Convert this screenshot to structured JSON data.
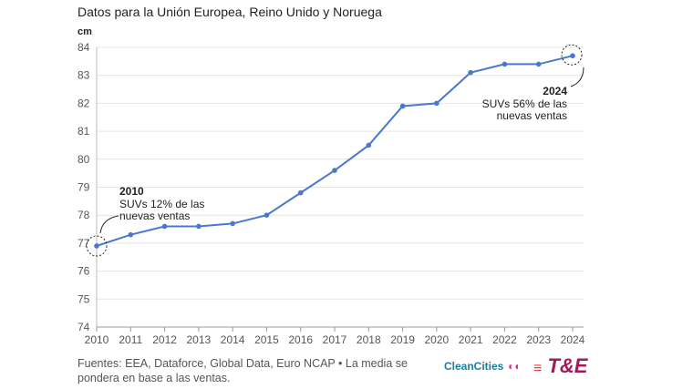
{
  "title": "Datos para la Unión Europea, Reino Unido y Noruega",
  "source": "Fuentes: EEA, Dataforce, Global Data, Euro NCAP • La media se pondera en base a las ventas.",
  "logos": {
    "cleancities": "CleanCities",
    "te": "T&E"
  },
  "chart_data": {
    "type": "line",
    "ylabel": "cm",
    "ylim": [
      74,
      84
    ],
    "yticks": [
      74,
      75,
      76,
      77,
      78,
      79,
      80,
      81,
      82,
      83,
      84
    ],
    "x": [
      2010,
      2011,
      2012,
      2013,
      2014,
      2015,
      2016,
      2017,
      2018,
      2019,
      2020,
      2021,
      2022,
      2023,
      2024
    ],
    "values": [
      76.9,
      77.3,
      77.6,
      77.6,
      77.7,
      78.0,
      78.8,
      79.6,
      80.5,
      81.9,
      82.0,
      83.1,
      83.4,
      83.4,
      83.7
    ],
    "grid": true,
    "color": "#4a78cf",
    "annotations": [
      {
        "x": 2010,
        "year": "2010",
        "line1": "SUVs 12% de las",
        "line2": "nuevas ventas"
      },
      {
        "x": 2024,
        "year": "2024",
        "line1": "SUVs 56% de las",
        "line2": "nuevas ventas"
      }
    ]
  }
}
